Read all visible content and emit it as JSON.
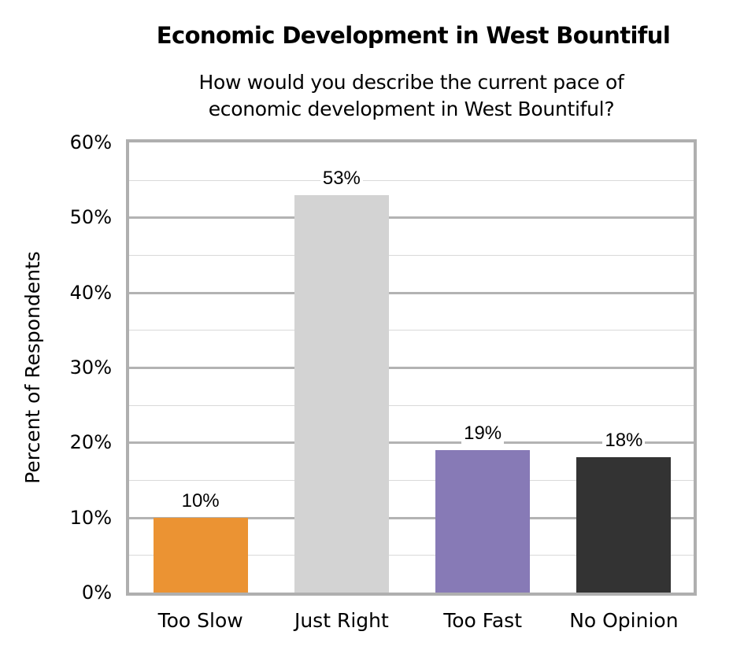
{
  "chart_data": {
    "type": "bar",
    "title": "Economic Development in West Bountiful",
    "subtitle": "How would you describe the current pace of economic development in West Bountiful?",
    "subtitle_lines": [
      "How would you describe the current pace of",
      "economic development in West Bountiful?"
    ],
    "xlabel": "",
    "ylabel": "Percent of Respondents",
    "ylim": [
      0,
      60
    ],
    "yticks": [
      "0%",
      "10%",
      "20%",
      "30%",
      "40%",
      "50%",
      "60%"
    ],
    "grid": true,
    "minor_grid_step": 5,
    "legend": null,
    "categories": [
      "Too Slow",
      "Just Right",
      "Too Fast",
      "No Opinion"
    ],
    "values": [
      10,
      53,
      19,
      18
    ],
    "data_labels": [
      "10%",
      "53%",
      "19%",
      "18%"
    ],
    "colors": [
      "#EB9333",
      "#D3D3D3",
      "#877AB6",
      "#333333"
    ]
  }
}
